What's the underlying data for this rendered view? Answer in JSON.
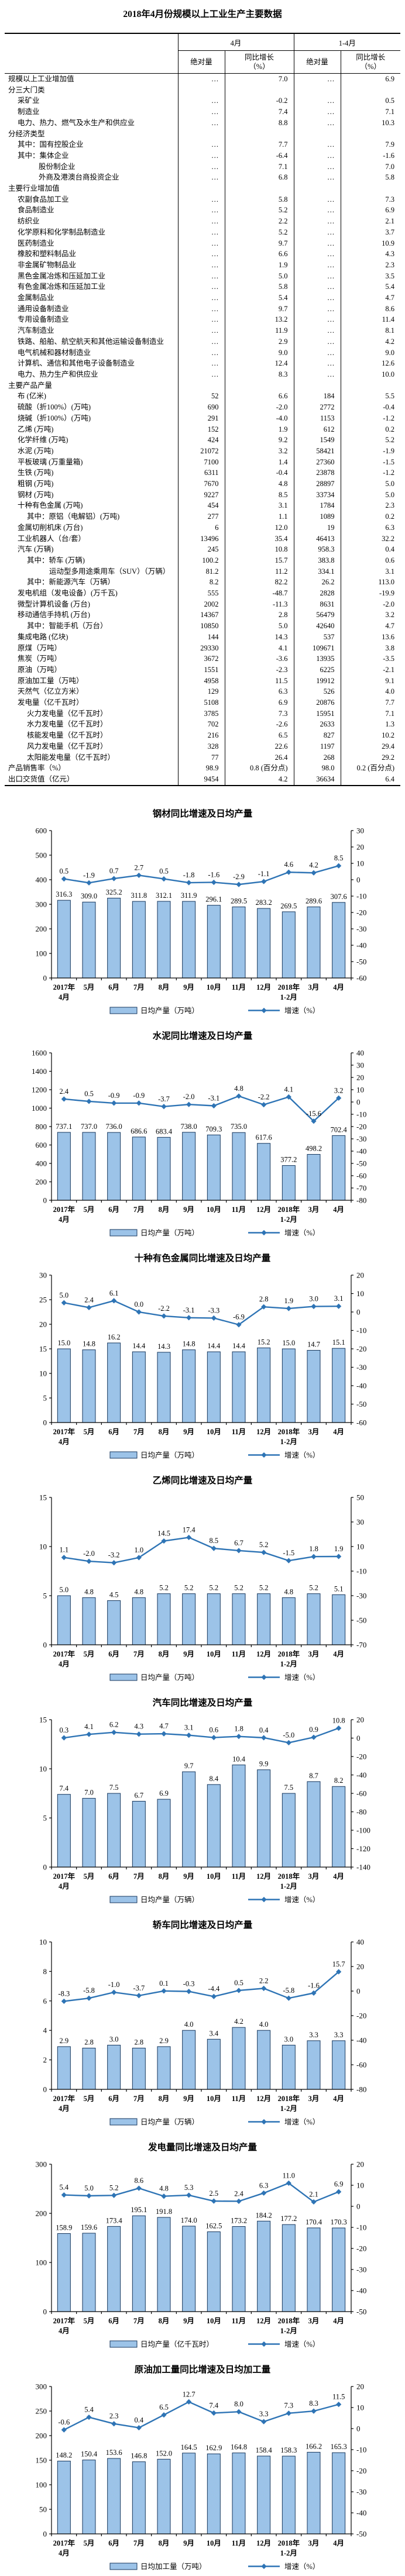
{
  "page_title": "2018年4月份规模以上工业生产主要数据",
  "colors": {
    "bar_fill": "#9CC3E8",
    "bar_border": "#16365C",
    "line": "#2E74B5",
    "text": "#000000"
  },
  "table": {
    "groups": [
      "4月",
      "1-4月"
    ],
    "sub_headers": [
      "绝对量",
      "同比增长\n（%）",
      "绝对量",
      "同比增长\n（%）"
    ],
    "rows": [
      {
        "label": "规模以上工业增加值",
        "indent": 0,
        "cells": [
          "…",
          "7.0",
          "…",
          "6.9"
        ]
      },
      {
        "label": "分三大门类",
        "indent": 0,
        "cells": [
          "",
          "",
          "",
          ""
        ]
      },
      {
        "label": "采矿业",
        "indent": 1,
        "cells": [
          "…",
          "-0.2",
          "…",
          "0.5"
        ]
      },
      {
        "label": "制造业",
        "indent": 1,
        "cells": [
          "…",
          "7.4",
          "…",
          "7.1"
        ]
      },
      {
        "label": "电力、热力、燃气及水生产和供应业",
        "indent": 1,
        "cells": [
          "…",
          "8.8",
          "…",
          "10.3"
        ]
      },
      {
        "label": "分经济类型",
        "indent": 0,
        "cells": [
          "",
          "",
          "",
          ""
        ]
      },
      {
        "label": "其中：国有控股企业",
        "indent": 1,
        "cells": [
          "…",
          "7.7",
          "…",
          "7.9"
        ]
      },
      {
        "label": "其中：集体企业",
        "indent": 1,
        "cells": [
          "…",
          "-6.4",
          "…",
          "-1.6"
        ]
      },
      {
        "label": "股份制企业",
        "indent": 3,
        "cells": [
          "…",
          "7.1",
          "…",
          "7.0"
        ]
      },
      {
        "label": "外商及港澳台商投资企业",
        "indent": 3,
        "cells": [
          "…",
          "6.8",
          "…",
          "5.8"
        ]
      },
      {
        "label": "主要行业增加值",
        "indent": 0,
        "cells": [
          "",
          "",
          "",
          ""
        ]
      },
      {
        "label": "农副食品加工业",
        "indent": 1,
        "cells": [
          "…",
          "5.8",
          "…",
          "7.3"
        ]
      },
      {
        "label": "食品制造业",
        "indent": 1,
        "cells": [
          "…",
          "5.2",
          "…",
          "6.9"
        ]
      },
      {
        "label": "纺织业",
        "indent": 1,
        "cells": [
          "…",
          "2.2",
          "…",
          "2.1"
        ]
      },
      {
        "label": "化学原料和化学制品制造业",
        "indent": 1,
        "cells": [
          "…",
          "5.2",
          "…",
          "3.7"
        ]
      },
      {
        "label": "医药制造业",
        "indent": 1,
        "cells": [
          "…",
          "9.7",
          "…",
          "10.9"
        ]
      },
      {
        "label": "橡胶和塑料制品业",
        "indent": 1,
        "cells": [
          "…",
          "6.6",
          "…",
          "4.3"
        ]
      },
      {
        "label": "非金属矿物制品业",
        "indent": 1,
        "cells": [
          "…",
          "1.9",
          "…",
          "2.3"
        ]
      },
      {
        "label": "黑色金属冶炼和压延加工业",
        "indent": 1,
        "cells": [
          "…",
          "5.0",
          "…",
          "3.5"
        ]
      },
      {
        "label": "有色金属冶炼和压延加工业",
        "indent": 1,
        "cells": [
          "…",
          "5.8",
          "…",
          "5.4"
        ]
      },
      {
        "label": "金属制品业",
        "indent": 1,
        "cells": [
          "…",
          "5.4",
          "…",
          "4.7"
        ]
      },
      {
        "label": "通用设备制造业",
        "indent": 1,
        "cells": [
          "…",
          "9.7",
          "…",
          "8.6"
        ]
      },
      {
        "label": "专用设备制造业",
        "indent": 1,
        "cells": [
          "…",
          "13.2",
          "…",
          "11.4"
        ]
      },
      {
        "label": "汽车制造业",
        "indent": 1,
        "cells": [
          "…",
          "11.9",
          "…",
          "8.1"
        ]
      },
      {
        "label": "铁路、船舶、航空航天和其他运输设备制造业",
        "indent": 1,
        "cells": [
          "…",
          "2.9",
          "…",
          "4.2"
        ]
      },
      {
        "label": "电气机械和器材制造业",
        "indent": 1,
        "cells": [
          "…",
          "9.0",
          "…",
          "9.0"
        ]
      },
      {
        "label": "计算机、通信和其他电子设备制造业",
        "indent": 1,
        "cells": [
          "…",
          "12.4",
          "…",
          "12.6"
        ]
      },
      {
        "label": "电力、热力生产和供应业",
        "indent": 1,
        "cells": [
          "…",
          "8.3",
          "…",
          "10.0"
        ]
      },
      {
        "label": "主要产品产量",
        "indent": 0,
        "cells": [
          "",
          "",
          "",
          ""
        ]
      },
      {
        "label": "布 (亿米)",
        "indent": 1,
        "cells": [
          "52",
          "6.6",
          "184",
          "5.5"
        ]
      },
      {
        "label": "硫酸（折100%）(万吨)",
        "indent": 1,
        "cells": [
          "690",
          "-2.0",
          "2772",
          "-0.4"
        ]
      },
      {
        "label": "烧碱（折100%）(万吨)",
        "indent": 1,
        "cells": [
          "291",
          "-4.0",
          "1153",
          "-1.2"
        ]
      },
      {
        "label": "乙烯 (万吨)",
        "indent": 1,
        "cells": [
          "152",
          "1.9",
          "612",
          "0.2"
        ]
      },
      {
        "label": "化学纤维 (万吨)",
        "indent": 1,
        "cells": [
          "424",
          "9.2",
          "1549",
          "5.2"
        ]
      },
      {
        "label": "水泥 (万吨)",
        "indent": 1,
        "cells": [
          "21072",
          "3.2",
          "58421",
          "-1.9"
        ]
      },
      {
        "label": "平板玻璃 (万重量箱)",
        "indent": 1,
        "cells": [
          "7100",
          "1.4",
          "27360",
          "-1.5"
        ]
      },
      {
        "label": "生铁 (万吨)",
        "indent": 1,
        "cells": [
          "6311",
          "-0.4",
          "23878",
          "-1.2"
        ]
      },
      {
        "label": "粗钢 (万吨)",
        "indent": 1,
        "cells": [
          "7670",
          "4.8",
          "28897",
          "5.0"
        ]
      },
      {
        "label": "钢材 (万吨)",
        "indent": 1,
        "cells": [
          "9227",
          "8.5",
          "33734",
          "5.0"
        ]
      },
      {
        "label": "十种有色金属 (万吨)",
        "indent": 1,
        "cells": [
          "454",
          "3.1",
          "1784",
          "2.3"
        ]
      },
      {
        "label": "其中：原铝（电解铝）(万吨)",
        "indent": 2,
        "cells": [
          "277",
          "1.1",
          "1089",
          "0.2"
        ]
      },
      {
        "label": "金属切削机床 (万台)",
        "indent": 1,
        "cells": [
          "6",
          "12.0",
          "19",
          "6.3"
        ]
      },
      {
        "label": "工业机器人（台/套）",
        "indent": 1,
        "cells": [
          "13496",
          "35.4",
          "46413",
          "32.2"
        ]
      },
      {
        "label": "汽车 (万辆)",
        "indent": 1,
        "cells": [
          "245",
          "10.8",
          "958.3",
          "0.4"
        ]
      },
      {
        "label": "其中：轿车 (万辆)",
        "indent": 2,
        "cells": [
          "100.2",
          "15.7",
          "383.8",
          "0.6"
        ]
      },
      {
        "label": "运动型多用途乘用车（SUV）（万辆）",
        "indent": 4,
        "cells": [
          "81.2",
          "11.2",
          "334.1",
          "3.1"
        ]
      },
      {
        "label": "其中：新能源汽车（万辆）",
        "indent": 2,
        "cells": [
          "8.2",
          "82.2",
          "26.2",
          "113.0"
        ]
      },
      {
        "label": "发电机组（发电设备）(万千瓦)",
        "indent": 1,
        "cells": [
          "555",
          "-48.7",
          "2828",
          "-19.9"
        ]
      },
      {
        "label": "微型计算机设备 (万台)",
        "indent": 1,
        "cells": [
          "2002",
          "-11.3",
          "8631",
          "-2.0"
        ]
      },
      {
        "label": "移动通信手持机 (万台)",
        "indent": 1,
        "cells": [
          "14367",
          "2.8",
          "56479",
          "3.2"
        ]
      },
      {
        "label": "其中：智能手机（万台）",
        "indent": 2,
        "cells": [
          "10850",
          "5.0",
          "42640",
          "4.7"
        ]
      },
      {
        "label": "集成电路 (亿块)",
        "indent": 1,
        "cells": [
          "144",
          "14.3",
          "537",
          "13.6"
        ]
      },
      {
        "label": "原煤（万吨）",
        "indent": 1,
        "cells": [
          "29330",
          "4.1",
          "109671",
          "3.8"
        ]
      },
      {
        "label": "焦炭（万吨）",
        "indent": 1,
        "cells": [
          "3672",
          "-3.6",
          "13935",
          "-3.5"
        ]
      },
      {
        "label": "原油（万吨）",
        "indent": 1,
        "cells": [
          "1551",
          "-2.3",
          "6225",
          "-2.1"
        ]
      },
      {
        "label": "原油加工量（万吨）",
        "indent": 1,
        "cells": [
          "4958",
          "11.5",
          "19912",
          "9.1"
        ]
      },
      {
        "label": "天然气（亿立方米）",
        "indent": 1,
        "cells": [
          "129",
          "6.3",
          "526",
          "4.0"
        ]
      },
      {
        "label": "发电量（亿千瓦时）",
        "indent": 1,
        "cells": [
          "5108",
          "6.9",
          "20876",
          "7.7"
        ]
      },
      {
        "label": "火力发电量（亿千瓦时）",
        "indent": 2,
        "cells": [
          "3785",
          "7.3",
          "15951",
          "7.1"
        ]
      },
      {
        "label": "水力发电量（亿千瓦时）",
        "indent": 2,
        "cells": [
          "702",
          "-2.6",
          "2633",
          "1.3"
        ]
      },
      {
        "label": "核能发电量（亿千瓦时）",
        "indent": 2,
        "cells": [
          "216",
          "6.5",
          "827",
          "10.2"
        ]
      },
      {
        "label": "风力发电量（亿千瓦时）",
        "indent": 2,
        "cells": [
          "328",
          "22.6",
          "1197",
          "29.4"
        ]
      },
      {
        "label": "太阳能发电量（亿千瓦时）",
        "indent": 2,
        "cells": [
          "77",
          "26.4",
          "268",
          "29.2"
        ]
      },
      {
        "label": "产品销售率（%）",
        "indent": 0,
        "cells": [
          "98.9",
          "0.8 (百分点)",
          "98.0",
          "0.2 (百分点)"
        ]
      },
      {
        "label": "出口交货值（亿元）",
        "indent": 0,
        "cells": [
          "9454",
          "4.2",
          "36634",
          "6.4"
        ]
      }
    ]
  },
  "chart_data": [
    {
      "type": "bar+line",
      "title": "钢材同比增速及日均产量",
      "categories": [
        "2017年|4月",
        "5月",
        "6月",
        "7月",
        "8月",
        "9月",
        "10月",
        "11月",
        "12月",
        "2018年|1-2月",
        "3月",
        "4月"
      ],
      "bar_series": {
        "name": "日均产量（万吨）",
        "values": [
          316.3,
          309.0,
          325.2,
          311.8,
          312.1,
          311.9,
          296.1,
          289.5,
          283.2,
          269.5,
          289.6,
          307.6
        ]
      },
      "line_series": {
        "name": "增速（%）",
        "values": [
          0.5,
          -1.9,
          0.7,
          2.7,
          0.5,
          -1.8,
          -1.6,
          -2.9,
          -1.1,
          4.6,
          4.2,
          8.5
        ]
      },
      "left_axis": {
        "min": 0,
        "max": 600,
        "step": 100
      },
      "right_axis": {
        "min": -60,
        "max": 30,
        "step": 10
      },
      "grid": false,
      "legend_position": "bottom"
    },
    {
      "type": "bar+line",
      "title": "水泥同比增速及日均产量",
      "categories": [
        "2017年|4月",
        "5月",
        "6月",
        "7月",
        "8月",
        "9月",
        "10月",
        "11月",
        "12月",
        "2018年|1-2月",
        "3月",
        "4月"
      ],
      "bar_series": {
        "name": "日均产量（万吨）",
        "values": [
          737.1,
          737.0,
          736.0,
          686.6,
          683.4,
          738.0,
          709.3,
          735.0,
          617.6,
          377.2,
          498.2,
          702.4
        ]
      },
      "line_series": {
        "name": "增速（%）",
        "values": [
          2.4,
          0.5,
          -0.9,
          -0.9,
          -3.7,
          -2.0,
          -3.1,
          4.8,
          -2.2,
          4.1,
          -15.6,
          3.2
        ]
      },
      "left_axis": {
        "min": 0,
        "max": 1600,
        "step": 200
      },
      "right_axis": {
        "min": -80,
        "max": 40,
        "step": 10
      },
      "grid": false,
      "legend_position": "bottom"
    },
    {
      "type": "bar+line",
      "title": "十种有色金属同比增速及日均产量",
      "categories": [
        "2017年|4月",
        "5月",
        "6月",
        "7月",
        "8月",
        "9月",
        "10月",
        "11月",
        "12月",
        "2018年|1-2月",
        "3月",
        "4月"
      ],
      "bar_series": {
        "name": "日均产量（万吨）",
        "values": [
          15.0,
          14.8,
          16.2,
          14.4,
          14.3,
          14.8,
          14.4,
          14.4,
          15.2,
          15.0,
          14.7,
          15.1
        ]
      },
      "line_series": {
        "name": "增速（%）",
        "values": [
          5.0,
          2.4,
          6.1,
          0.0,
          -2.2,
          -3.1,
          -3.3,
          -6.9,
          2.8,
          1.9,
          3.0,
          3.1
        ]
      },
      "left_axis": {
        "min": 0,
        "max": 30,
        "step": 5
      },
      "right_axis": {
        "min": -60,
        "max": 20,
        "step": 10
      },
      "grid": false,
      "legend_position": "bottom"
    },
    {
      "type": "bar+line",
      "title": "乙烯同比增速及日均产量",
      "categories": [
        "2017年|4月",
        "5月",
        "6月",
        "7月",
        "8月",
        "9月",
        "10月",
        "11月",
        "12月",
        "2018年|1-2月",
        "3月",
        "4月"
      ],
      "bar_series": {
        "name": "日均产量（万吨）",
        "values": [
          5.0,
          4.8,
          4.5,
          4.8,
          5.2,
          5.2,
          5.2,
          5.2,
          5.2,
          4.8,
          5.2,
          5.1
        ]
      },
      "line_series": {
        "name": "增速（%）",
        "values": [
          1.1,
          -2.0,
          -3.2,
          1.0,
          14.5,
          17.4,
          8.5,
          6.7,
          5.2,
          -1.5,
          1.8,
          1.9
        ]
      },
      "left_axis": {
        "min": 0,
        "max": 15,
        "step": 5
      },
      "right_axis": {
        "min": -70,
        "max": 50,
        "step": 20
      },
      "grid": false,
      "legend_position": "bottom"
    },
    {
      "type": "bar+line",
      "title": "汽车同比增速及日均产量",
      "categories": [
        "2017年|4月",
        "5月",
        "6月",
        "7月",
        "8月",
        "9月",
        "10月",
        "11月",
        "12月",
        "2018年|1-2月",
        "3月",
        "4月"
      ],
      "bar_series": {
        "name": "日均产量（万辆）",
        "values": [
          7.4,
          7.0,
          7.5,
          6.7,
          6.9,
          9.7,
          8.4,
          10.4,
          9.9,
          7.5,
          8.7,
          8.2
        ]
      },
      "line_series": {
        "name": "增速（%）",
        "values": [
          0.3,
          4.1,
          6.2,
          4.3,
          4.7,
          3.1,
          0.6,
          1.8,
          0.4,
          -5.0,
          0.9,
          10.8
        ]
      },
      "left_axis": {
        "min": 0,
        "max": 15,
        "step": 5
      },
      "right_axis": {
        "min": -140,
        "max": 20,
        "step": 20
      },
      "grid": false,
      "legend_position": "bottom"
    },
    {
      "type": "bar+line",
      "title": "轿车同比增速及日均产量",
      "categories": [
        "2017年|4月",
        "5月",
        "6月",
        "7月",
        "8月",
        "9月",
        "10月",
        "11月",
        "12月",
        "2018年|1-2月",
        "3月",
        "4月"
      ],
      "bar_series": {
        "name": "日均产量（万辆）",
        "values": [
          2.9,
          2.8,
          3.0,
          2.8,
          2.9,
          4.0,
          3.4,
          4.2,
          4.0,
          3.0,
          3.3,
          3.3
        ]
      },
      "line_series": {
        "name": "增速（%）",
        "values": [
          -8.3,
          -5.8,
          -1.0,
          -3.7,
          0.1,
          -0.3,
          -4.4,
          0.5,
          2.2,
          -5.8,
          -1.6,
          15.7
        ]
      },
      "left_axis": {
        "min": 0,
        "max": 10,
        "step": 2
      },
      "right_axis": {
        "min": -80,
        "max": 40,
        "step": 20
      },
      "grid": false,
      "legend_position": "bottom"
    },
    {
      "type": "bar+line",
      "title": "发电量同比增速及日均产量",
      "categories": [
        "2017年|4月",
        "5月",
        "6月",
        "7月",
        "8月",
        "9月",
        "10月",
        "11月",
        "12月",
        "2018年|1-2月",
        "3月",
        "4月"
      ],
      "bar_series": {
        "name": "日均产量（亿千瓦时）",
        "values": [
          158.9,
          159.6,
          173.4,
          195.1,
          191.8,
          174.0,
          162.5,
          173.2,
          184.2,
          177.2,
          170.4,
          170.3
        ]
      },
      "line_series": {
        "name": "增速（%）",
        "values": [
          5.4,
          5.0,
          5.2,
          8.6,
          4.8,
          5.3,
          2.5,
          2.4,
          6.3,
          11.0,
          2.1,
          6.9
        ]
      },
      "left_axis": {
        "min": 0,
        "max": 300,
        "step": 100
      },
      "right_axis": {
        "min": -50,
        "max": 20,
        "step": 10
      },
      "grid": false,
      "legend_position": "bottom"
    },
    {
      "type": "bar+line",
      "title": "原油加工量同比增速及日均加工量",
      "categories": [
        "2017年|4月",
        "5月",
        "6月",
        "7月",
        "8月",
        "9月",
        "10月",
        "11月",
        "12月",
        "2018年|1-2月",
        "3月",
        "4月"
      ],
      "bar_series": {
        "name": "日均加工量（万吨）",
        "values": [
          148.2,
          150.4,
          153.6,
          146.8,
          152.0,
          164.5,
          162.9,
          164.8,
          158.4,
          158.3,
          166.2,
          165.3
        ]
      },
      "line_series": {
        "name": "增速（%）",
        "values": [
          -0.6,
          5.4,
          2.3,
          0.4,
          6.5,
          12.7,
          7.4,
          8.0,
          3.3,
          7.3,
          8.3,
          11.5
        ]
      },
      "left_axis": {
        "min": 0,
        "max": 300,
        "step": 50
      },
      "right_axis": {
        "min": -50,
        "max": 20,
        "step": 10
      },
      "grid": false,
      "legend_position": "bottom"
    }
  ]
}
